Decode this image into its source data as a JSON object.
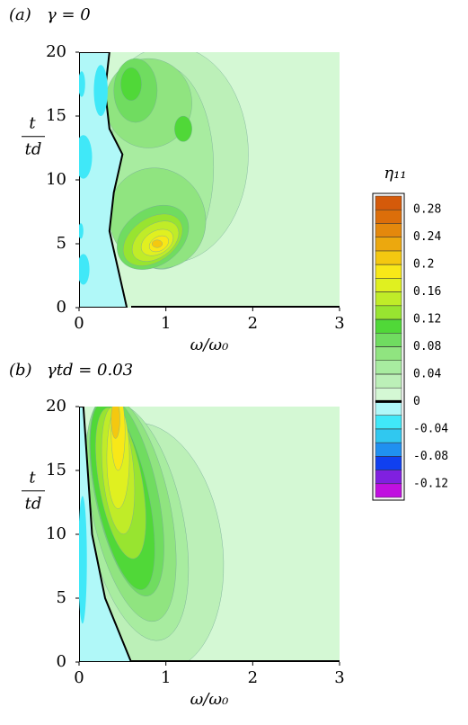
{
  "chart_data": [
    {
      "type": "contour",
      "panel_label": "(a)",
      "title": "γ = 0",
      "xlabel": "ω/ω₀",
      "ylabel": "t",
      "ylabel_denominator": "td",
      "xlim": [
        0,
        3
      ],
      "ylim": [
        0,
        20
      ],
      "xticks": [
        0,
        1,
        2,
        3
      ],
      "yticks": [
        0,
        5,
        10,
        15,
        20
      ]
    },
    {
      "type": "contour",
      "panel_label": "(b)",
      "title": "γtd = 0.03",
      "xlabel": "ω/ω₀",
      "ylabel": "t",
      "ylabel_denominator": "td",
      "xlim": [
        0,
        3
      ],
      "ylim": [
        0,
        20
      ],
      "xticks": [
        0,
        1,
        2,
        3
      ],
      "yticks": [
        0,
        5,
        10,
        15,
        20
      ]
    },
    {
      "type": "colorbar",
      "title": "η₁₁",
      "ylim": [
        -0.14,
        0.3
      ],
      "yticks": [
        -0.12,
        -0.08,
        -0.04,
        0,
        0.04,
        0.08,
        0.12,
        0.16,
        0.2,
        0.24,
        0.28
      ],
      "colors": [
        "#c010e0",
        "#8020e0",
        "#1040f0",
        "#2090f0",
        "#30c8f0",
        "#40e8f8",
        "#b0f8f8",
        "#d4f8d4",
        "#bcf0b8",
        "#a8eca0",
        "#90e480",
        "#70dc60",
        "#50d838",
        "#98e430",
        "#c0ec28",
        "#e0f020",
        "#f8e818",
        "#f4c810",
        "#eca80e",
        "#e4880c",
        "#dc6e0a",
        "#d45a0a"
      ],
      "zero_line_color": "#000000"
    }
  ]
}
